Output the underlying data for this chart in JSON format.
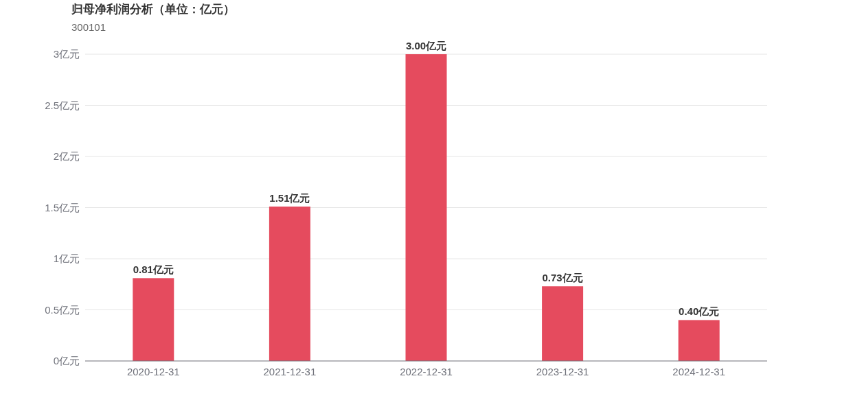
{
  "chart_data": {
    "type": "bar",
    "title": "归母净利润分析（单位：亿元）",
    "subtitle": "300101",
    "categories": [
      "2020-12-31",
      "2021-12-31",
      "2022-12-31",
      "2023-12-31",
      "2024-12-31"
    ],
    "values": [
      0.81,
      1.51,
      3.0,
      0.73,
      0.4
    ],
    "color": "#e54b5e",
    "value_labels": [
      "0.81亿元",
      "1.51亿元",
      "3.00亿元",
      "0.73亿元",
      "0.40亿元"
    ],
    "ylim": [
      0,
      3
    ],
    "yticks": [
      {
        "value": 0,
        "label": "0亿元"
      },
      {
        "value": 0.5,
        "label": "0.5亿元"
      },
      {
        "value": 1,
        "label": "1亿元"
      },
      {
        "value": 1.5,
        "label": "1.5亿元"
      },
      {
        "value": 2,
        "label": "2亿元"
      },
      {
        "value": 2.5,
        "label": "2.5亿元"
      },
      {
        "value": 3,
        "label": "3亿元"
      }
    ],
    "grid": "y",
    "legend": false
  }
}
